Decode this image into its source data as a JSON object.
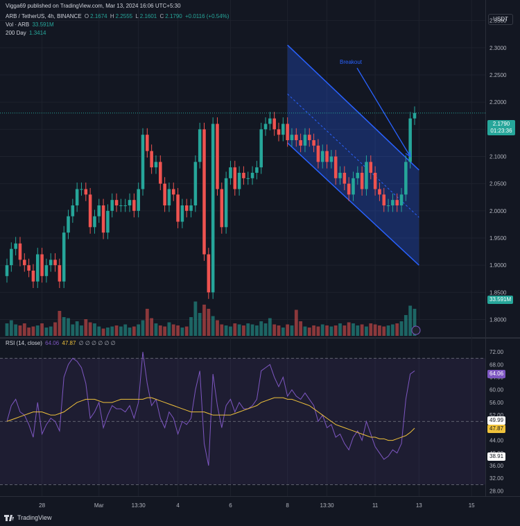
{
  "header": {
    "publisher": "Vigga69 published on TradingView.com, Mar 13, 2024 16:06 UTC+5:30",
    "symbol": "ARB / TetherUS, 4h, BINANCE",
    "o_label": "O",
    "o_value": "2.1674",
    "h_label": "H",
    "h_value": "2.2555",
    "l_label": "L",
    "l_value": "2.1601",
    "c_label": "C",
    "c_value": "2.1790",
    "change": "+0.0116 (+0.54%)",
    "vol_label": "Vol · ARB",
    "vol_value": "33.591M",
    "ma_label": "200 Day",
    "ma_value": "1.3414",
    "currency": "USDT"
  },
  "rsi_header": {
    "label": "RSI (14, close)",
    "rsi_value": "64.06",
    "ma_value": "47.87",
    "zeros": "∅ ∅ ∅ ∅ ∅ ∅"
  },
  "price_tag": {
    "price": "2.1790",
    "countdown": "01:23:36"
  },
  "volume_tag": "33.591M",
  "rsi_tags": {
    "rsi": "64.06",
    "upper": "49.99",
    "ma": "47.87",
    "lower": "38.91"
  },
  "annotation": "Breakout",
  "brand": "TradingView",
  "colors": {
    "up": "#26a69a",
    "down": "#ef5350",
    "channel": "#2962ff",
    "rsi": "#7e57c2",
    "rsi_ma": "#f0c23b",
    "bg": "#131722"
  },
  "chart_data": [
    {
      "type": "candlestick",
      "title": "ARB / TetherUS, 4h, BINANCE",
      "ylim": [
        1.77,
        2.37
      ],
      "yticks": [
        1.8,
        1.85,
        1.9,
        1.95,
        2.0,
        2.05,
        2.1,
        2.15,
        2.2,
        2.25,
        2.3,
        2.35
      ],
      "ytick_labels": [
        "1.8000",
        "1.8500",
        "1.9000",
        "1.9500",
        "2.0000",
        "2.0500",
        "2.1000",
        "2.1500",
        "2.2000",
        "2.2500",
        "2.3000",
        "2.3500"
      ],
      "xtick_labels": [
        "28",
        "Mar",
        "13:30",
        "4",
        "6",
        "8",
        "13:30",
        "11",
        "13",
        "15"
      ],
      "grid": true,
      "close": [
        1.9,
        1.93,
        1.94,
        1.91,
        1.9,
        1.89,
        1.87,
        1.92,
        1.88,
        1.9,
        1.91,
        1.9,
        1.87,
        1.96,
        1.99,
        2.01,
        2.04,
        2.04,
        2.03,
        1.97,
        1.99,
        2.01,
        1.96,
        2.0,
        2.02,
        2.01,
        2.01,
        2.01,
        2.02,
        2.0,
        2.04,
        2.14,
        2.11,
        2.08,
        2.09,
        2.05,
        2.01,
        2.04,
        2.03,
        1.98,
        2.01,
        2.0,
        2.01,
        2.09,
        2.15,
        1.92,
        1.85,
        2.16,
        2.04,
        1.97,
        2.06,
        2.08,
        2.04,
        2.07,
        2.06,
        2.06,
        2.07,
        2.08,
        2.15,
        2.16,
        2.17,
        2.15,
        2.14,
        2.16,
        2.13,
        2.14,
        2.13,
        2.12,
        2.14,
        2.13,
        2.12,
        2.09,
        2.11,
        2.09,
        2.1,
        2.06,
        2.07,
        2.05,
        2.03,
        2.06,
        2.07,
        2.04,
        2.09,
        2.07,
        2.04,
        2.03,
        2.01,
        2.01,
        2.02,
        2.01,
        2.03,
        2.09,
        2.17,
        2.18
      ],
      "volume_scale_max": 60,
      "volume": [
        12,
        15,
        11,
        10,
        12,
        8,
        9,
        10,
        12,
        8,
        9,
        13,
        24,
        18,
        17,
        11,
        14,
        10,
        16,
        13,
        12,
        9,
        7,
        8,
        9,
        10,
        9,
        11,
        8,
        9,
        11,
        15,
        26,
        17,
        12,
        10,
        9,
        13,
        11,
        10,
        8,
        9,
        18,
        33,
        22,
        30,
        26,
        19,
        15,
        11,
        10,
        9,
        12,
        11,
        10,
        12,
        11,
        10,
        14,
        12,
        17,
        11,
        10,
        8,
        11,
        10,
        25,
        14,
        9,
        8,
        10,
        9,
        11,
        10,
        9,
        10,
        12,
        10,
        13,
        12,
        10,
        11,
        9,
        12,
        11,
        10,
        9,
        10,
        11,
        12,
        14,
        20,
        29,
        26
      ],
      "annotations": [
        "Breakout"
      ]
    },
    {
      "type": "line",
      "title": "RSI (14, close)",
      "ylim": [
        27,
        74
      ],
      "yticks": [
        28,
        32,
        36,
        40,
        44,
        48,
        52,
        56,
        60,
        64,
        68,
        72
      ],
      "ytick_labels": [
        "28.00",
        "32.00",
        "36.00",
        "40.00",
        "44.00",
        "48.00",
        "52.00",
        "56.00",
        "60.00",
        "64.00",
        "68.00",
        "72.00"
      ],
      "bands": [
        30,
        50,
        70
      ],
      "series": [
        {
          "name": "RSI",
          "values": [
            50,
            55,
            57,
            53,
            52,
            49,
            45,
            56,
            46,
            49,
            51,
            50,
            47,
            64,
            68,
            70,
            69,
            67,
            62,
            51,
            53,
            56,
            48,
            52,
            55,
            54,
            54,
            53,
            55,
            51,
            56,
            72,
            62,
            55,
            57,
            51,
            48,
            53,
            51,
            46,
            50,
            49,
            51,
            60,
            66,
            43,
            36,
            65,
            55,
            48,
            55,
            57,
            53,
            56,
            54,
            54,
            55,
            57,
            66,
            67,
            68,
            64,
            61,
            64,
            58,
            60,
            58,
            57,
            59,
            57,
            55,
            50,
            52,
            48,
            49,
            45,
            46,
            43,
            41,
            45,
            47,
            44,
            50,
            46,
            42,
            40,
            38,
            39,
            41,
            40,
            43,
            57,
            65,
            66
          ]
        },
        {
          "name": "MA",
          "values": [
            50,
            50.5,
            51,
            51.5,
            52,
            52.5,
            53,
            53,
            53,
            52.5,
            52,
            52,
            52.5,
            53,
            54,
            55,
            56,
            56.5,
            57,
            57,
            57,
            56.5,
            56,
            56,
            56,
            56.5,
            57,
            57,
            57,
            57,
            57,
            57,
            57.5,
            57.5,
            57,
            56.5,
            56,
            55.5,
            55,
            54.5,
            54,
            53.5,
            53,
            53,
            53,
            53,
            52.5,
            52,
            52,
            52,
            52,
            52,
            52.5,
            53,
            53.5,
            54,
            54.5,
            55,
            56,
            56.5,
            57,
            57.5,
            57.5,
            57.5,
            57,
            57,
            56.5,
            56,
            55.5,
            55,
            54,
            53,
            52,
            51,
            50,
            49,
            48.5,
            48,
            47.5,
            47,
            46.5,
            46,
            45.5,
            45,
            45,
            44.5,
            44.5,
            44,
            44,
            44.5,
            45,
            45.5,
            46.5,
            47.87
          ]
        }
      ]
    }
  ]
}
